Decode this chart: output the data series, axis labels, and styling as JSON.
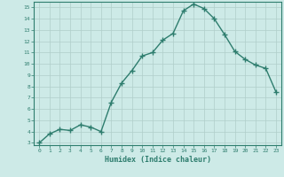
{
  "x": [
    0,
    1,
    2,
    3,
    4,
    5,
    6,
    7,
    8,
    9,
    10,
    11,
    12,
    13,
    14,
    15,
    16,
    17,
    18,
    19,
    20,
    21,
    22,
    23
  ],
  "y": [
    3.0,
    3.8,
    4.2,
    4.1,
    4.6,
    4.4,
    4.0,
    6.6,
    8.3,
    9.4,
    10.7,
    11.0,
    12.1,
    12.7,
    14.7,
    15.3,
    14.9,
    14.0,
    12.6,
    11.1,
    10.4,
    9.9,
    9.6,
    7.5
  ],
  "xlim": [
    -0.5,
    23.5
  ],
  "ylim": [
    2.8,
    15.5
  ],
  "yticks": [
    3,
    4,
    5,
    6,
    7,
    8,
    9,
    10,
    11,
    12,
    13,
    14,
    15
  ],
  "xticks": [
    0,
    1,
    2,
    3,
    4,
    5,
    6,
    7,
    8,
    9,
    10,
    11,
    12,
    13,
    14,
    15,
    16,
    17,
    18,
    19,
    20,
    21,
    22,
    23
  ],
  "xlabel": "Humidex (Indice chaleur)",
  "line_color": "#2e7d6e",
  "marker": "+",
  "marker_size": 4,
  "bg_color": "#cdeae7",
  "grid_color": "#b0ceca",
  "axis_color": "#2e7d6e",
  "tick_color": "#2e7d6e",
  "xlabel_color": "#2e7d6e",
  "line_width": 1.0
}
